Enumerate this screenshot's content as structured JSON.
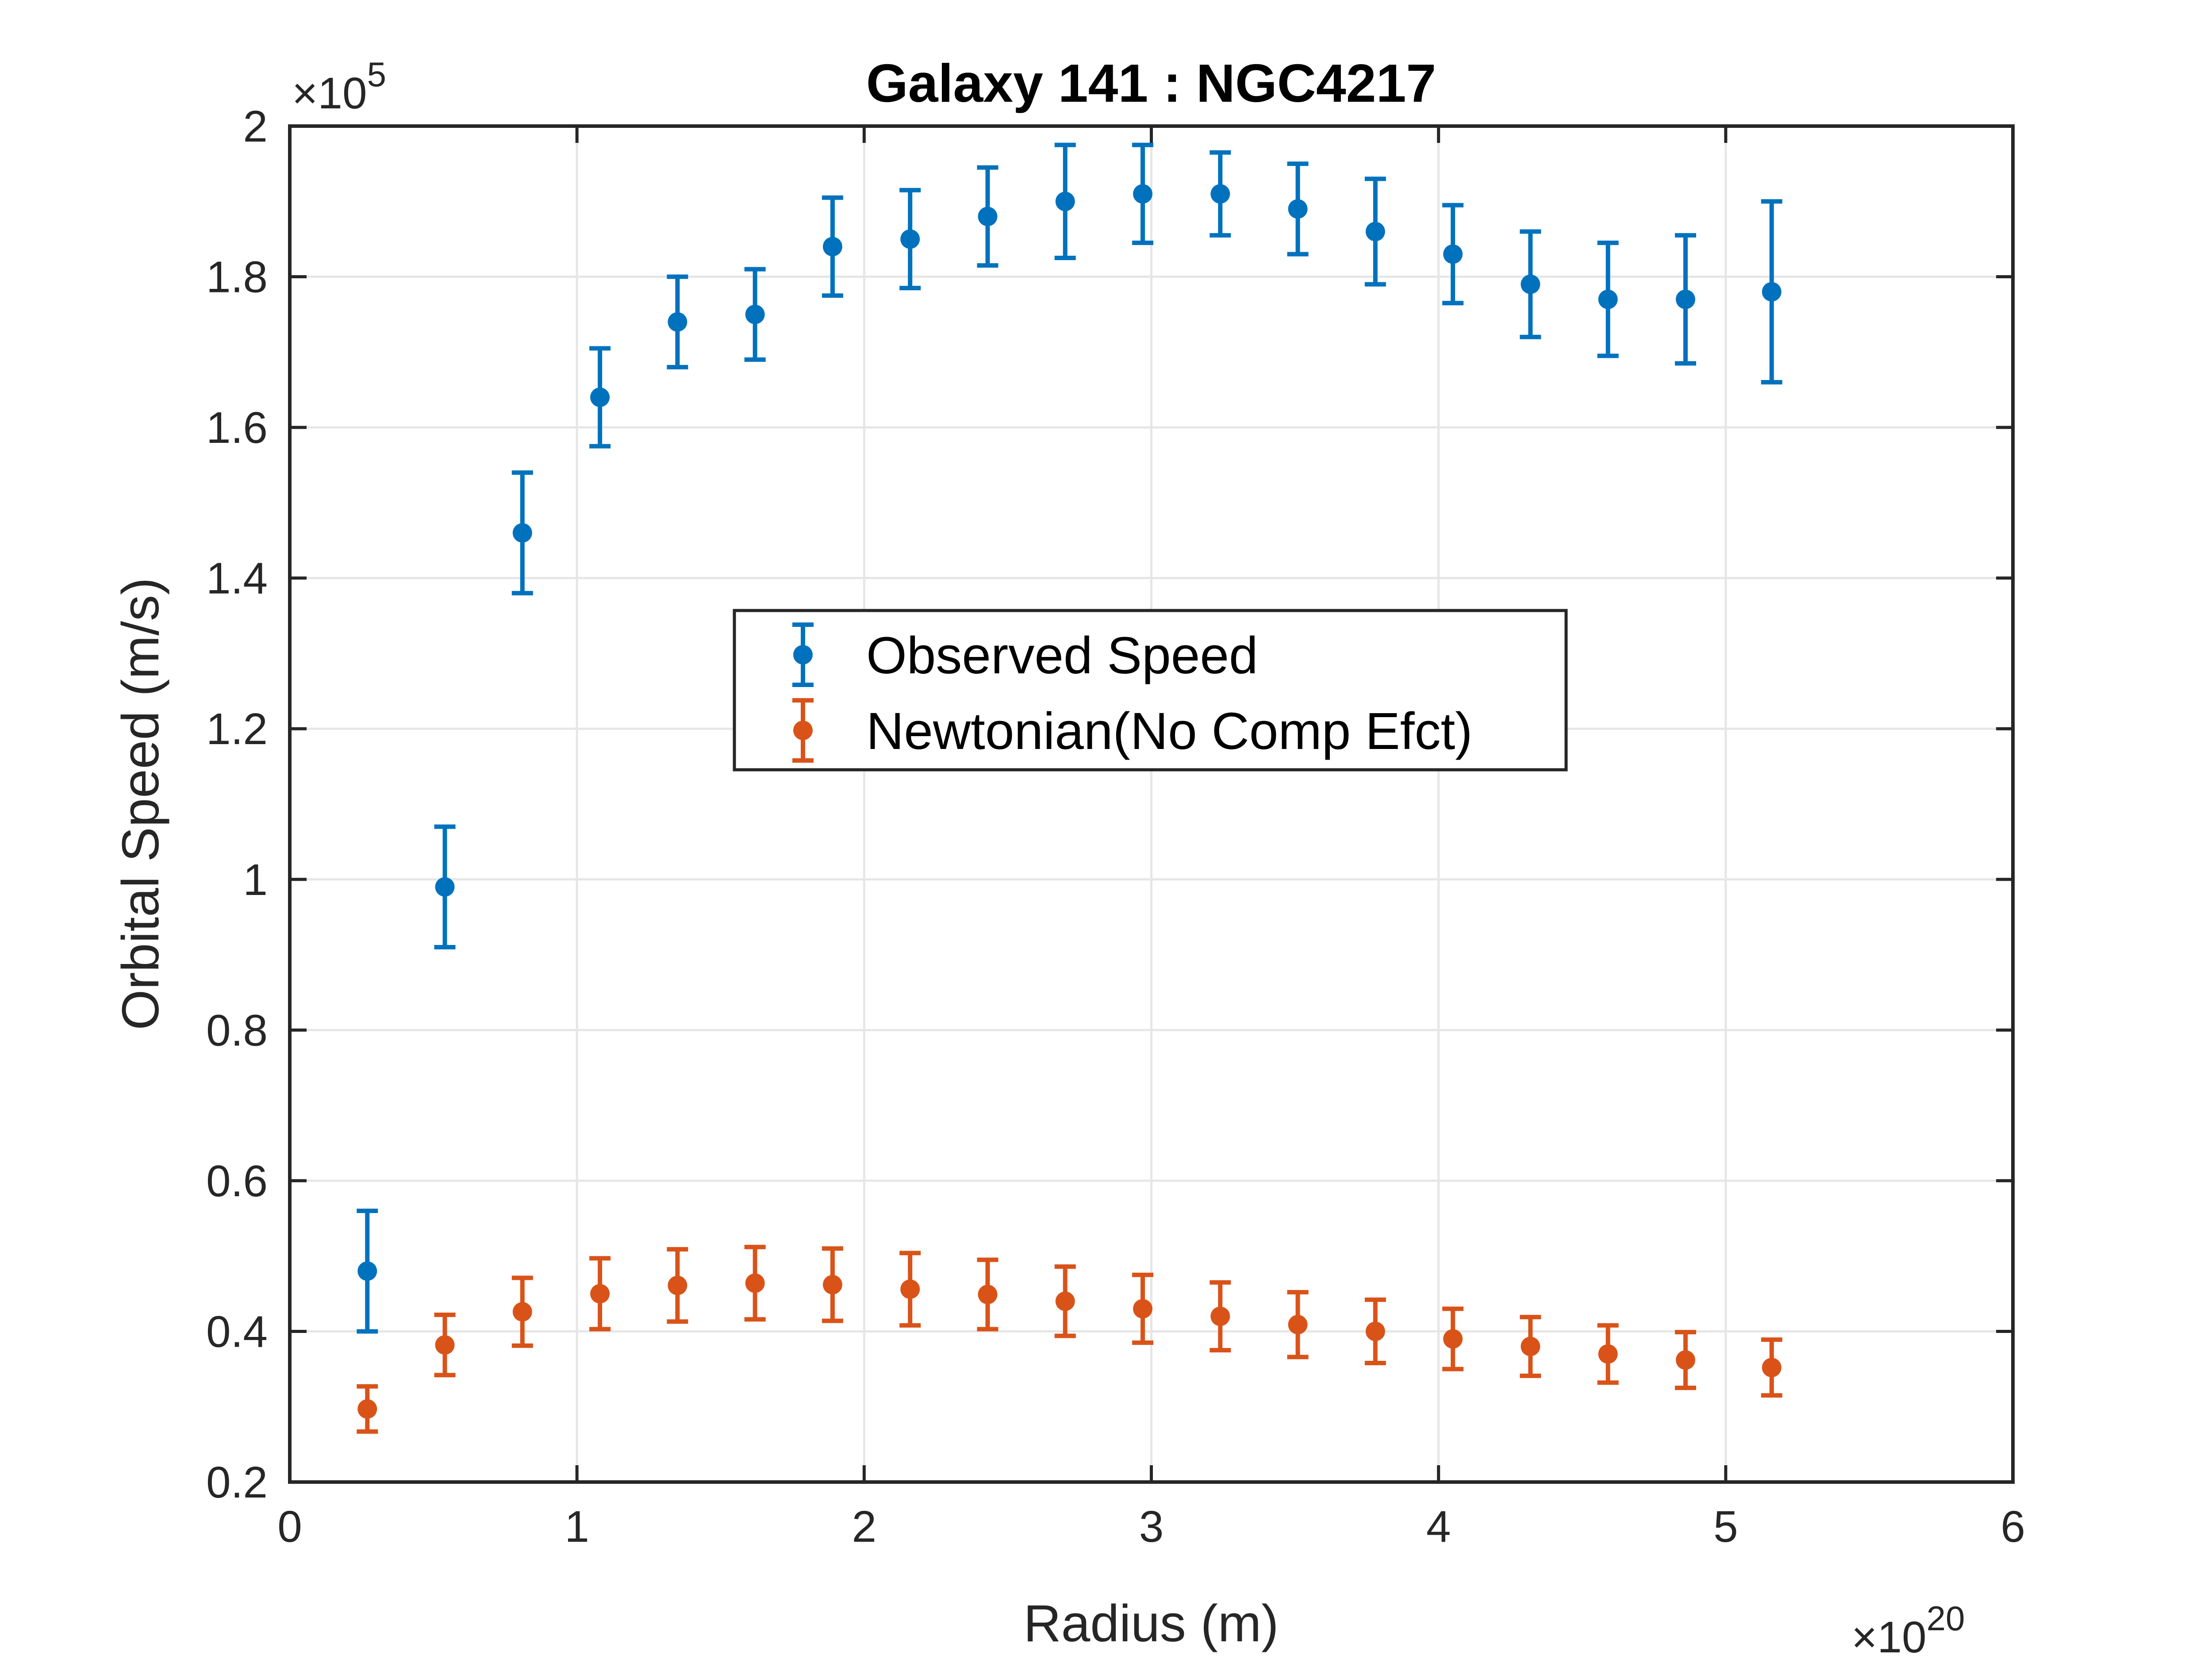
{
  "chart_data": {
    "type": "scatter",
    "title": "Galaxy 141 : NGC4217",
    "xlabel": "Radius (m)",
    "ylabel": "Orbital Speed (m/s)",
    "x_multiplier": {
      "base": "×10",
      "exponent": "20"
    },
    "y_multiplier": {
      "base": "×10",
      "exponent": "5"
    },
    "xlim": [
      0,
      6e+20
    ],
    "ylim": [
      20000,
      200000
    ],
    "x_ticks": [
      0,
      1e+20,
      2e+20,
      3e+20,
      4e+20,
      5e+20,
      6e+20
    ],
    "x_tick_labels": [
      "0",
      "1",
      "2",
      "3",
      "4",
      "5",
      "6"
    ],
    "y_ticks": [
      20000,
      40000,
      60000,
      80000,
      100000,
      120000,
      140000,
      160000,
      180000,
      200000
    ],
    "y_tick_labels": [
      "0.2",
      "0.4",
      "0.6",
      "0.8",
      "1",
      "1.2",
      "1.4",
      "1.6",
      "1.8",
      "2"
    ],
    "grid": true,
    "legend_position": "center",
    "x": [
      2.7e+19,
      5.4e+19,
      8.1e+19,
      1.08e+20,
      1.35e+20,
      1.62e+20,
      1.89e+20,
      2.16e+20,
      2.43e+20,
      2.7e+20,
      2.97e+20,
      3.24e+20,
      3.51e+20,
      3.78e+20,
      4.05e+20,
      4.32e+20,
      4.59e+20,
      4.86e+20,
      5.16e+20
    ],
    "series": [
      {
        "name": "Observed Speed",
        "color": "#0072bd",
        "values": [
          48000,
          99000,
          146000,
          164000,
          174000,
          175000,
          184000,
          185000,
          188000,
          190000,
          191000,
          191000,
          189000,
          186000,
          183000,
          179000,
          177000,
          177000,
          178000
        ],
        "errors": [
          8000,
          8000,
          8000,
          6500,
          6000,
          6000,
          6500,
          6500,
          6500,
          7500,
          6500,
          5500,
          6000,
          7000,
          6500,
          7000,
          7500,
          8500,
          12000
        ]
      },
      {
        "name": "Newtonian(No Comp Efct)",
        "color": "#d95319",
        "values": [
          29700,
          38200,
          42600,
          45000,
          46100,
          46400,
          46200,
          45600,
          44900,
          44000,
          43000,
          42000,
          40900,
          40000,
          39000,
          38000,
          37000,
          36200,
          35200
        ],
        "errors": [
          3000,
          4000,
          4500,
          4700,
          4800,
          4800,
          4800,
          4800,
          4600,
          4600,
          4500,
          4500,
          4300,
          4200,
          4000,
          3900,
          3800,
          3700,
          3700
        ]
      }
    ]
  }
}
